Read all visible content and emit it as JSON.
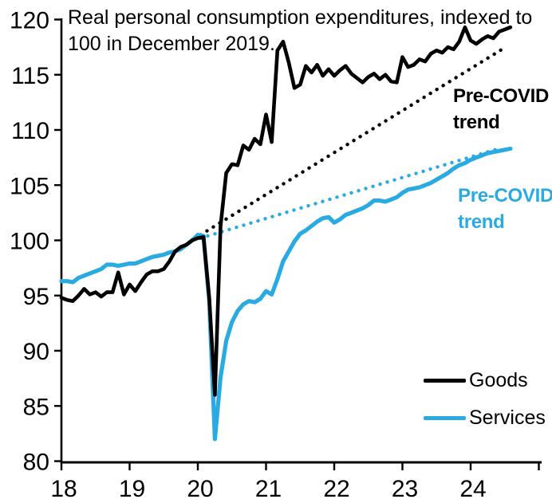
{
  "title": {
    "full": "Real personal consumption expenditures, indexed to 100 in December 2019.",
    "line1": "Real personal consumption expenditures, indexed to",
    "line2": "100 in December 2019."
  },
  "colors": {
    "goods": "#000000",
    "services": "#29ABE2",
    "axis": "#000000",
    "background": "#ffffff"
  },
  "annotations": {
    "goods_trend": {
      "line1": "Pre-COVID",
      "line2": "trend"
    },
    "services_trend": {
      "line1": "Pre-COVID",
      "line2": "trend"
    }
  },
  "legend": {
    "goods_label": "Goods",
    "services_label": "Services"
  },
  "chart_data": {
    "type": "line",
    "title": "Real personal consumption expenditures, indexed to 100 in December 2019.",
    "index_note": "December 2019 = 100",
    "x_tick_labels": [
      "18",
      "19",
      "20",
      "21",
      "22",
      "23",
      "24"
    ],
    "x_tick_years": [
      2018,
      2019,
      2020,
      2021,
      2022,
      2023,
      2024
    ],
    "has_unlabeled_end_tick": true,
    "end_tick_year": 2025,
    "y_ticks": [
      80,
      85,
      90,
      95,
      100,
      105,
      110,
      115,
      120
    ],
    "ylim": [
      80,
      120
    ],
    "xlim": [
      2018,
      2025.08
    ],
    "grid": false,
    "legend_position": "inside lower right",
    "series": [
      {
        "name": "Goods",
        "color": "#000000",
        "style": "solid",
        "freq": "monthly",
        "start_month": "2018-01",
        "end_month": "2024-08",
        "values": [
          94.8,
          94.6,
          94.5,
          95.0,
          95.6,
          95.1,
          95.3,
          94.9,
          95.3,
          95.3,
          97.1,
          95.1,
          96.0,
          95.4,
          96.2,
          96.9,
          97.2,
          97.2,
          97.4,
          98.1,
          99.0,
          99.4,
          99.6,
          100.0,
          100.2,
          100.3,
          94.8,
          86.0,
          101.3,
          106.1,
          106.9,
          106.8,
          108.6,
          108.2,
          109.2,
          108.7,
          111.4,
          108.9,
          117.2,
          118.0,
          116.1,
          113.8,
          114.1,
          115.8,
          115.2,
          115.9,
          114.9,
          115.5,
          114.9,
          115.4,
          115.8,
          115.1,
          114.7,
          114.3,
          114.8,
          115.1,
          114.6,
          115.0,
          114.4,
          114.3,
          116.6,
          115.7,
          115.9,
          116.4,
          116.2,
          116.9,
          117.2,
          117.0,
          117.5,
          117.3,
          118.0,
          119.3,
          118.1,
          117.8,
          118.2,
          118.5,
          118.3,
          118.9,
          119.1,
          119.3
        ]
      },
      {
        "name": "Services",
        "color": "#29ABE2",
        "style": "solid",
        "freq": "monthly",
        "start_month": "2018-01",
        "end_month": "2024-08",
        "values": [
          96.3,
          96.3,
          96.2,
          96.6,
          96.8,
          97.0,
          97.2,
          97.4,
          97.8,
          97.8,
          97.7,
          97.8,
          97.9,
          97.9,
          98.1,
          98.3,
          98.5,
          98.6,
          98.7,
          98.9,
          99.0,
          99.2,
          99.6,
          100.0,
          100.5,
          100.4,
          94.5,
          82.0,
          87.6,
          90.9,
          92.6,
          93.6,
          94.2,
          94.5,
          94.4,
          94.7,
          95.4,
          95.1,
          96.5,
          98.1,
          99.0,
          99.9,
          100.6,
          100.9,
          101.3,
          101.7,
          102.0,
          102.1,
          101.6,
          101.9,
          102.3,
          102.5,
          102.7,
          102.9,
          103.2,
          103.6,
          103.6,
          103.5,
          103.7,
          103.9,
          104.3,
          104.6,
          104.7,
          104.8,
          105.0,
          105.2,
          105.5,
          105.8,
          106.1,
          106.5,
          106.8,
          107.0,
          107.3,
          107.5,
          107.7,
          107.9,
          108.0,
          108.1,
          108.2,
          108.3
        ]
      },
      {
        "name": "Goods pre-COVID trend",
        "color": "#000000",
        "style": "dotted",
        "line": {
          "x0": 2020.04,
          "v0": 100.5,
          "x1": 2024.46,
          "v1": 117.3
        }
      },
      {
        "name": "Services pre-COVID trend",
        "color": "#29ABE2",
        "style": "dotted",
        "line": {
          "x0": 2020.04,
          "v0": 100.2,
          "x1": 2024.46,
          "v1": 108.4
        }
      }
    ]
  }
}
